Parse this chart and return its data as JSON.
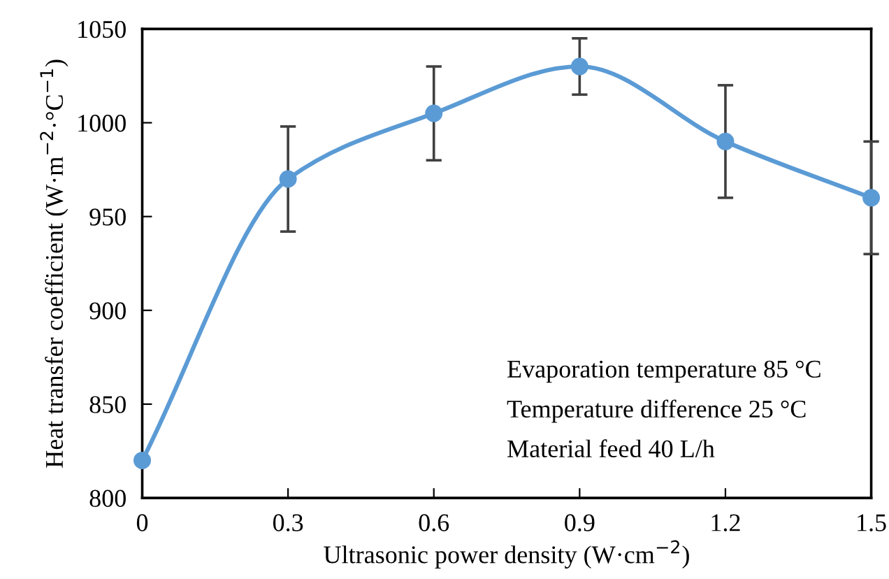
{
  "chart_data": {
    "type": "line",
    "xlabel": "Ultrasonic power density (W·cm$^{−2}$)",
    "ylabel": "Heat transfer coefficient (W·m$^{−2}$·°C$^{−1}$)",
    "x": [
      0,
      0.3,
      0.6,
      0.9,
      1.2,
      1.5
    ],
    "series": [
      {
        "color": "#5b9bd5",
        "values": [
          820,
          970,
          1005,
          1030,
          990,
          960
        ],
        "errors": [
          null,
          28,
          25,
          15,
          30,
          30
        ]
      }
    ],
    "xlim": [
      0,
      1.5
    ],
    "xticks": [
      0,
      0.3,
      0.6,
      0.9,
      1.2,
      1.5
    ],
    "ylim": [
      800,
      1050
    ],
    "yticks": [
      800,
      850,
      900,
      950,
      1000,
      1050
    ],
    "marker": "circle",
    "grid": false,
    "legend": false,
    "annotations": [
      "Evaporation temperature 85 °C",
      "Temperature difference 25 °C",
      "Material feed 40 L/h"
    ]
  }
}
